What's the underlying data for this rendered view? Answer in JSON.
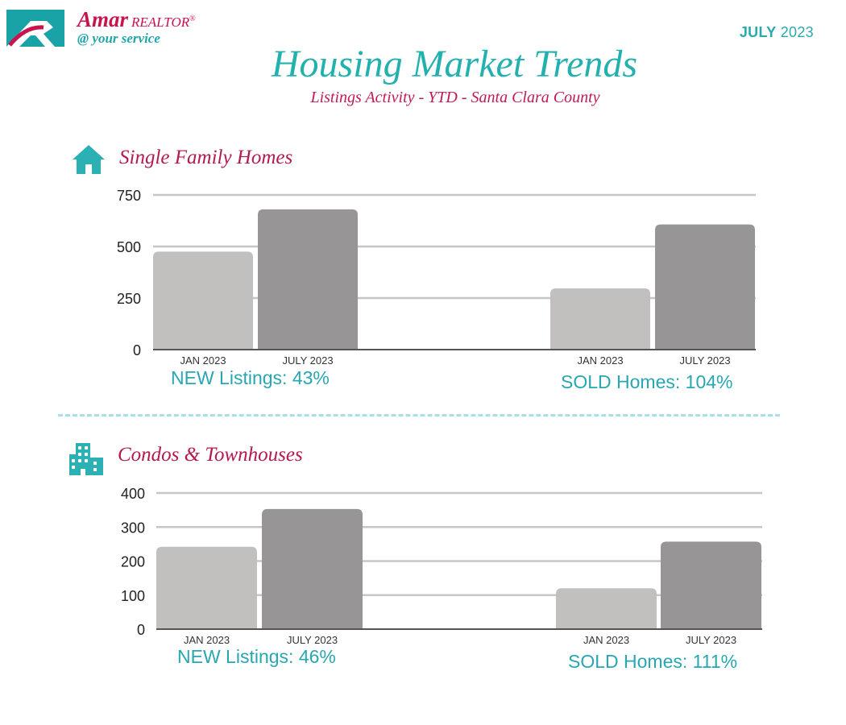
{
  "brand": {
    "name": "Amar",
    "sub": "REALTOR",
    "mark": "®",
    "tagline": "@ your service"
  },
  "date": {
    "month": "JULY",
    "year": "2023"
  },
  "title": "Housing Market Trends",
  "subtitle": "Listings Activity - YTD - Santa Clara County",
  "colors": {
    "teal": "#22b1ae",
    "magenta": "#b5194f",
    "bar_light": "#c2bfbf",
    "bar_dark": "#979595",
    "grid": "#c6c6c6"
  },
  "sections": [
    {
      "title": "Single Family Homes",
      "icon": "house-icon",
      "captions": [
        "NEW Listings: 43%",
        "SOLD Homes: 104%"
      ]
    },
    {
      "title": "Condos & Townhouses",
      "icon": "building-icon",
      "captions": [
        "NEW Listings: 46%",
        "SOLD Homes: 111%"
      ]
    }
  ],
  "chart_data": [
    {
      "type": "bar",
      "title": "Single Family Homes",
      "ylim": [
        0,
        750
      ],
      "yticks": [
        0,
        250,
        500,
        750
      ],
      "categories": [
        "JAN 2023",
        "JULY 2023",
        "JAN 2023",
        "JULY 2023"
      ],
      "groups": [
        "NEW Listings",
        "SOLD Homes"
      ],
      "values": [
        475,
        680,
        297,
        607
      ]
    },
    {
      "type": "bar",
      "title": "Condos & Townhouses",
      "ylim": [
        0,
        400
      ],
      "yticks": [
        0,
        100,
        200,
        300,
        400
      ],
      "categories": [
        "JAN 2023",
        "JULY  2023",
        "JAN 2023",
        "JULY 2023"
      ],
      "groups": [
        "NEW Listings",
        "SOLD Homes"
      ],
      "values": [
        242,
        353,
        120,
        257
      ]
    }
  ]
}
